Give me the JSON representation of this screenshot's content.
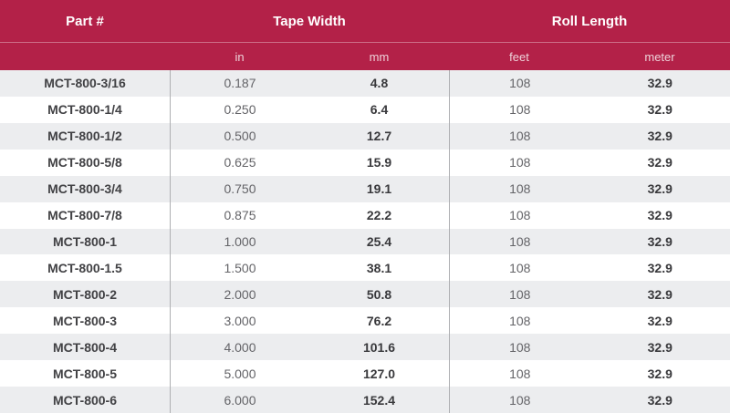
{
  "colors": {
    "header_bg": "#b32148",
    "header_text": "#ffffff",
    "subheader_text": "#eed3da",
    "row_alt_bg": "#ecedef",
    "divider": "#aeafb2",
    "value_bold_text": "#39393c",
    "value_light_text": "#646468"
  },
  "table": {
    "header_groups": [
      {
        "label": "Part #"
      },
      {
        "label": "Tape Width"
      },
      {
        "label": "Roll Length"
      }
    ],
    "subheaders": {
      "part": "",
      "in": "in",
      "mm": "mm",
      "feet": "feet",
      "meter": "meter"
    },
    "rows": [
      {
        "part": "MCT-800-3/16",
        "in": "0.187",
        "mm": "4.8",
        "feet": "108",
        "meter": "32.9"
      },
      {
        "part": "MCT-800-1/4",
        "in": "0.250",
        "mm": "6.4",
        "feet": "108",
        "meter": "32.9"
      },
      {
        "part": "MCT-800-1/2",
        "in": "0.500",
        "mm": "12.7",
        "feet": "108",
        "meter": "32.9"
      },
      {
        "part": "MCT-800-5/8",
        "in": "0.625",
        "mm": "15.9",
        "feet": "108",
        "meter": "32.9"
      },
      {
        "part": "MCT-800-3/4",
        "in": "0.750",
        "mm": "19.1",
        "feet": "108",
        "meter": "32.9"
      },
      {
        "part": "MCT-800-7/8",
        "in": "0.875",
        "mm": "22.2",
        "feet": "108",
        "meter": "32.9"
      },
      {
        "part": "MCT-800-1",
        "in": "1.000",
        "mm": "25.4",
        "feet": "108",
        "meter": "32.9"
      },
      {
        "part": "MCT-800-1.5",
        "in": "1.500",
        "mm": "38.1",
        "feet": "108",
        "meter": "32.9"
      },
      {
        "part": "MCT-800-2",
        "in": "2.000",
        "mm": "50.8",
        "feet": "108",
        "meter": "32.9"
      },
      {
        "part": "MCT-800-3",
        "in": "3.000",
        "mm": "76.2",
        "feet": "108",
        "meter": "32.9"
      },
      {
        "part": "MCT-800-4",
        "in": "4.000",
        "mm": "101.6",
        "feet": "108",
        "meter": "32.9"
      },
      {
        "part": "MCT-800-5",
        "in": "5.000",
        "mm": "127.0",
        "feet": "108",
        "meter": "32.9"
      },
      {
        "part": "MCT-800-6",
        "in": "6.000",
        "mm": "152.4",
        "feet": "108",
        "meter": "32.9"
      }
    ]
  }
}
